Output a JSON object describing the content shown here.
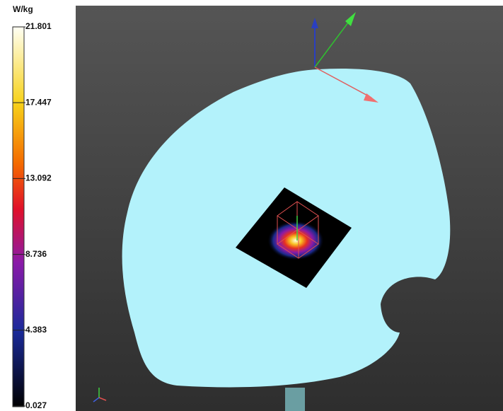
{
  "colorbar": {
    "unit": "W/kg",
    "range": [
      0.027,
      21.801
    ],
    "ticks": [
      21.801,
      17.447,
      13.092,
      8.736,
      4.383,
      0.027
    ]
  }
}
